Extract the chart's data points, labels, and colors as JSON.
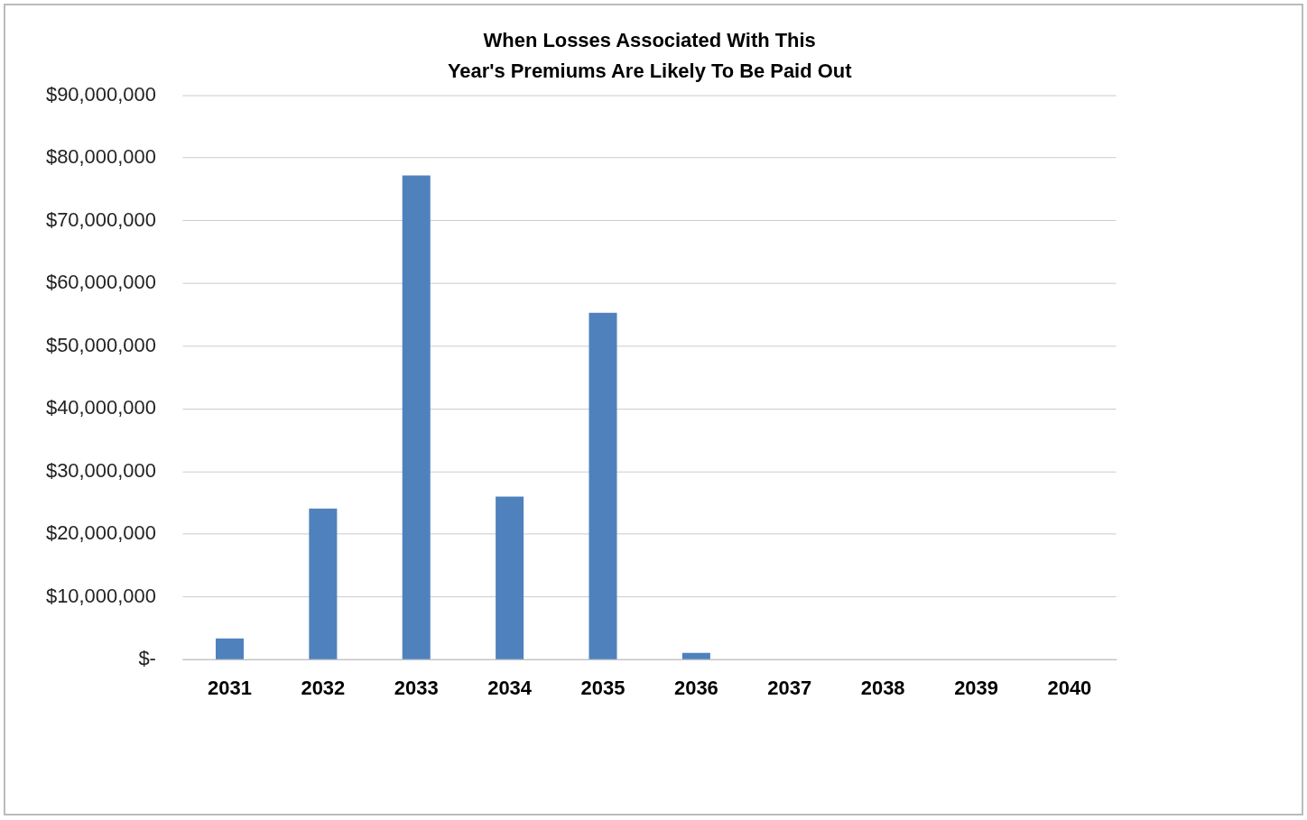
{
  "chart_data": {
    "type": "bar",
    "title": "When Losses Associated With This\nYear's Premiums Are Likely To Be Paid Out",
    "categories": [
      "2031",
      "2032",
      "2033",
      "2034",
      "2035",
      "2036",
      "2037",
      "2038",
      "2039",
      "2040"
    ],
    "values": [
      3400000,
      24100000,
      77200000,
      26000000,
      55300000,
      1100000,
      0,
      0,
      0,
      0
    ],
    "color": "#4f81bd",
    "ylim": [
      0,
      90000000
    ],
    "yticks": [
      {
        "value": 0,
        "label": "$-"
      },
      {
        "value": 10000000,
        "label": "$10,000,000"
      },
      {
        "value": 20000000,
        "label": "$20,000,000"
      },
      {
        "value": 30000000,
        "label": "$30,000,000"
      },
      {
        "value": 40000000,
        "label": "$40,000,000"
      },
      {
        "value": 50000000,
        "label": "$50,000,000"
      },
      {
        "value": 60000000,
        "label": "$60,000,000"
      },
      {
        "value": 70000000,
        "label": "$70,000,000"
      },
      {
        "value": 80000000,
        "label": "$80,000,000"
      },
      {
        "value": 90000000,
        "label": "$90,000,000"
      }
    ],
    "grid": "y"
  }
}
